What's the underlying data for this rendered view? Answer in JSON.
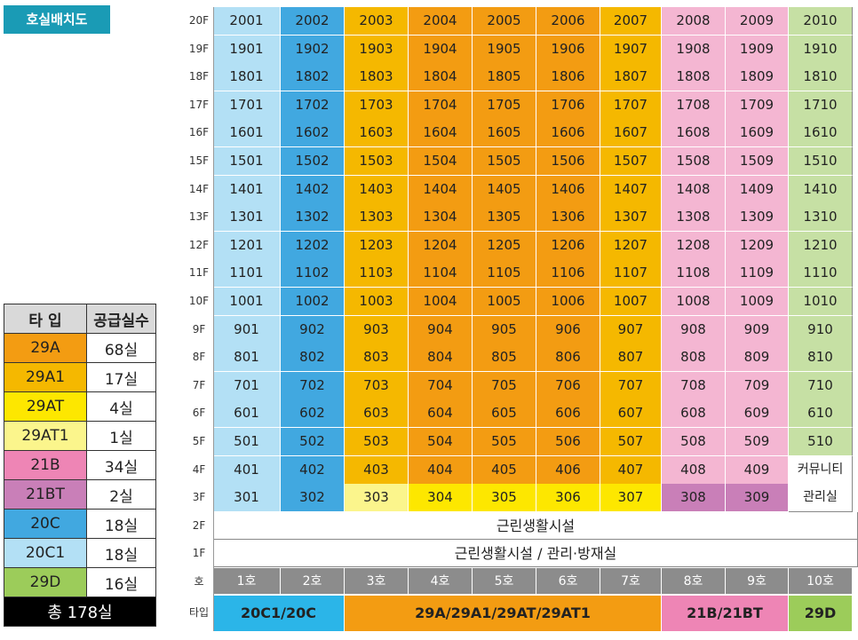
{
  "title": "호실배치도",
  "legend": {
    "header": [
      "타 입",
      "공급실수"
    ],
    "rows": [
      {
        "type": "29A",
        "count": "68실",
        "color": "#f39c12"
      },
      {
        "type": "29A1",
        "count": "17실",
        "color": "#f5b800"
      },
      {
        "type": "29AT",
        "count": "4실",
        "color": "#fde700"
      },
      {
        "type": "29AT1",
        "count": "1실",
        "color": "#fbf58c"
      },
      {
        "type": "21B",
        "count": "34실",
        "color": "#ee85b5"
      },
      {
        "type": "21BT",
        "count": "2실",
        "color": "#c97fb8"
      },
      {
        "type": "20C",
        "count": "18실",
        "color": "#41a8e0"
      },
      {
        "type": "20C1",
        "count": "18실",
        "color": "#b3e0f5"
      },
      {
        "type": "29D",
        "count": "16실",
        "color": "#9ccc5a"
      }
    ],
    "total": "총 178실"
  },
  "floors": [
    {
      "label": "20F",
      "cells": [
        "2001",
        "2002",
        "2003",
        "2004",
        "2005",
        "2006",
        "2007",
        "2008",
        "2009",
        "2010"
      ]
    },
    {
      "label": "19F",
      "cells": [
        "1901",
        "1902",
        "1903",
        "1904",
        "1905",
        "1906",
        "1907",
        "1908",
        "1909",
        "1910"
      ]
    },
    {
      "label": "18F",
      "cells": [
        "1801",
        "1802",
        "1803",
        "1804",
        "1805",
        "1806",
        "1807",
        "1808",
        "1809",
        "1810"
      ]
    },
    {
      "label": "17F",
      "cells": [
        "1701",
        "1702",
        "1703",
        "1704",
        "1705",
        "1706",
        "1707",
        "1708",
        "1709",
        "1710"
      ]
    },
    {
      "label": "16F",
      "cells": [
        "1601",
        "1602",
        "1603",
        "1604",
        "1605",
        "1606",
        "1607",
        "1608",
        "1609",
        "1610"
      ]
    },
    {
      "label": "15F",
      "cells": [
        "1501",
        "1502",
        "1503",
        "1504",
        "1505",
        "1506",
        "1507",
        "1508",
        "1509",
        "1510"
      ]
    },
    {
      "label": "14F",
      "cells": [
        "1401",
        "1402",
        "1403",
        "1404",
        "1405",
        "1406",
        "1407",
        "1408",
        "1409",
        "1410"
      ]
    },
    {
      "label": "13F",
      "cells": [
        "1301",
        "1302",
        "1303",
        "1304",
        "1305",
        "1306",
        "1307",
        "1308",
        "1309",
        "1310"
      ]
    },
    {
      "label": "12F",
      "cells": [
        "1201",
        "1202",
        "1203",
        "1204",
        "1205",
        "1206",
        "1207",
        "1208",
        "1209",
        "1210"
      ]
    },
    {
      "label": "11F",
      "cells": [
        "1101",
        "1102",
        "1103",
        "1104",
        "1105",
        "1106",
        "1107",
        "1108",
        "1109",
        "1110"
      ]
    },
    {
      "label": "10F",
      "cells": [
        "1001",
        "1002",
        "1003",
        "1004",
        "1005",
        "1006",
        "1007",
        "1008",
        "1009",
        "1010"
      ]
    },
    {
      "label": "9F",
      "cells": [
        "901",
        "902",
        "903",
        "904",
        "905",
        "906",
        "907",
        "908",
        "909",
        "910"
      ]
    },
    {
      "label": "8F",
      "cells": [
        "801",
        "802",
        "803",
        "804",
        "805",
        "806",
        "807",
        "808",
        "809",
        "810"
      ]
    },
    {
      "label": "7F",
      "cells": [
        "701",
        "702",
        "703",
        "704",
        "705",
        "706",
        "707",
        "708",
        "709",
        "710"
      ]
    },
    {
      "label": "6F",
      "cells": [
        "601",
        "602",
        "603",
        "604",
        "605",
        "606",
        "607",
        "608",
        "609",
        "610"
      ]
    },
    {
      "label": "5F",
      "cells": [
        "501",
        "502",
        "503",
        "504",
        "505",
        "506",
        "507",
        "508",
        "509",
        "510"
      ]
    },
    {
      "label": "4F",
      "cells": [
        "401",
        "402",
        "403",
        "404",
        "405",
        "406",
        "407",
        "408",
        "409",
        "커뮤니티"
      ]
    },
    {
      "label": "3F",
      "cells": [
        "301",
        "302",
        "303",
        "304",
        "305",
        "306",
        "307",
        "308",
        "309",
        "관리실"
      ]
    }
  ],
  "floor_2": {
    "label": "2F",
    "text": "근린생활시설"
  },
  "floor_1": {
    "label": "1F",
    "text": "근린생활시설 / 관리·방재실"
  },
  "ho_row": {
    "label": "호",
    "cells": [
      "1호",
      "2호",
      "3호",
      "4호",
      "5호",
      "6호",
      "7호",
      "8호",
      "9호",
      "10호"
    ]
  },
  "type_row": {
    "label": "타입",
    "groups": [
      {
        "text": "20C1/20C",
        "color": "#2bb5e8"
      },
      {
        "text": "29A/29A1/29AT/29AT1",
        "color": "#f39c12"
      },
      {
        "text": "21B/21BT",
        "color": "#ee85b5"
      },
      {
        "text": "29D",
        "color": "#9ccc5a"
      }
    ]
  },
  "colors": {
    "c20C1": "#b3e0f5",
    "c20C": "#41a8e0",
    "c29A": "#f39c12",
    "c29A1": "#f5b800",
    "c29AT": "#fde700",
    "c29AT1": "#fbf58c",
    "c21B": "#f4b6d2",
    "c21BT": "#c97fb8",
    "c29D": "#c6e0a4",
    "white": "#ffffff"
  }
}
